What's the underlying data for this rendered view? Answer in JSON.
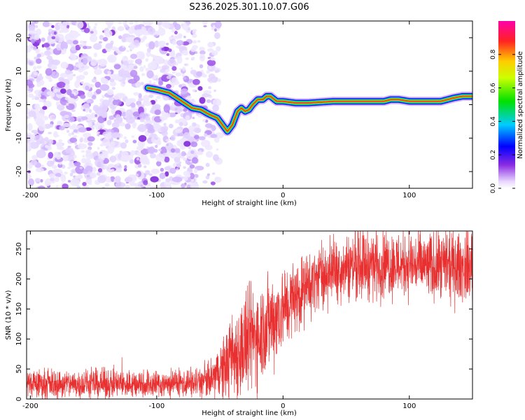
{
  "figure_title": "S236.2025.301.10.07.G06",
  "colors": {
    "snr_line": "#e83030",
    "axis": "#000000",
    "ridge_peak": "#ff2222"
  },
  "chart_data": [
    {
      "type": "heatmap",
      "title": "S236.2025.301.10.07.G06",
      "xlabel": "Height of straight line (km)",
      "ylabel": "Frequency (Hz)",
      "xlim": [
        -203,
        150
      ],
      "ylim": [
        -25,
        25
      ],
      "xticks": [
        -200,
        -100,
        0,
        100
      ],
      "xtick_labels": [
        "-200",
        "-100",
        "0",
        "100"
      ],
      "yticks": [
        -20,
        -10,
        0,
        10,
        20
      ],
      "ytick_labels": [
        "-20",
        "-10",
        "0",
        "10",
        "20"
      ],
      "noise_region_x": [
        -203,
        -58
      ],
      "ridge": {
        "x": [
          -107,
          -100,
          -90,
          -80,
          -72,
          -65,
          -58,
          -52,
          -48,
          -44,
          -40,
          -36,
          -33,
          -30,
          -27,
          -24,
          -20,
          -16,
          -13,
          -10,
          -5,
          0,
          10,
          20,
          40,
          60,
          80,
          85,
          92,
          100,
          110,
          125,
          135,
          142,
          150
        ],
        "y": [
          5,
          4.5,
          3.5,
          1,
          -1,
          -1.5,
          -3,
          -4,
          -6,
          -8,
          -6,
          -2,
          -1,
          -2,
          -1.5,
          0,
          1.5,
          1.5,
          2.5,
          2.5,
          1,
          1,
          0.5,
          0.5,
          1,
          1,
          1,
          1.5,
          1.5,
          1,
          1,
          1,
          2,
          2.5,
          2.5
        ]
      },
      "colorbar": {
        "label": "Normalized spectral amplitude",
        "range": [
          0,
          1
        ],
        "ticks": [
          0,
          0.2,
          0.4,
          0.6,
          0.8
        ],
        "tick_labels": [
          "0.0",
          "0.2",
          "0.4",
          "0.6",
          "0.8"
        ]
      }
    },
    {
      "type": "line",
      "xlabel": "Height of straight line (km)",
      "ylabel": "SNR (10 * v/v)",
      "xlim": [
        -203,
        150
      ],
      "ylim": [
        0,
        280
      ],
      "xticks": [
        -200,
        -100,
        0,
        100
      ],
      "xtick_labels": [
        "-200",
        "-100",
        "0",
        "100"
      ],
      "yticks": [
        0,
        50,
        100,
        150,
        200,
        250
      ],
      "ytick_labels": [
        "0",
        "50",
        "100",
        "150",
        "200",
        "250"
      ],
      "trend": {
        "x": [
          -203,
          -150,
          -100,
          -70,
          -58,
          -50,
          -40,
          -30,
          -20,
          -10,
          0,
          10,
          20,
          30,
          40,
          50,
          60,
          80,
          100,
          120,
          150
        ],
        "y": [
          25,
          25,
          25,
          27,
          30,
          45,
          70,
          90,
          110,
          130,
          150,
          170,
          190,
          205,
          215,
          220,
          225,
          225,
          225,
          220,
          220
        ]
      },
      "noise_amplitude": {
        "x": [
          -203,
          -70,
          -58,
          -45,
          -30,
          -10,
          10,
          30,
          60,
          150
        ],
        "y": [
          12,
          12,
          15,
          30,
          45,
          40,
          30,
          25,
          28,
          28
        ]
      }
    }
  ]
}
